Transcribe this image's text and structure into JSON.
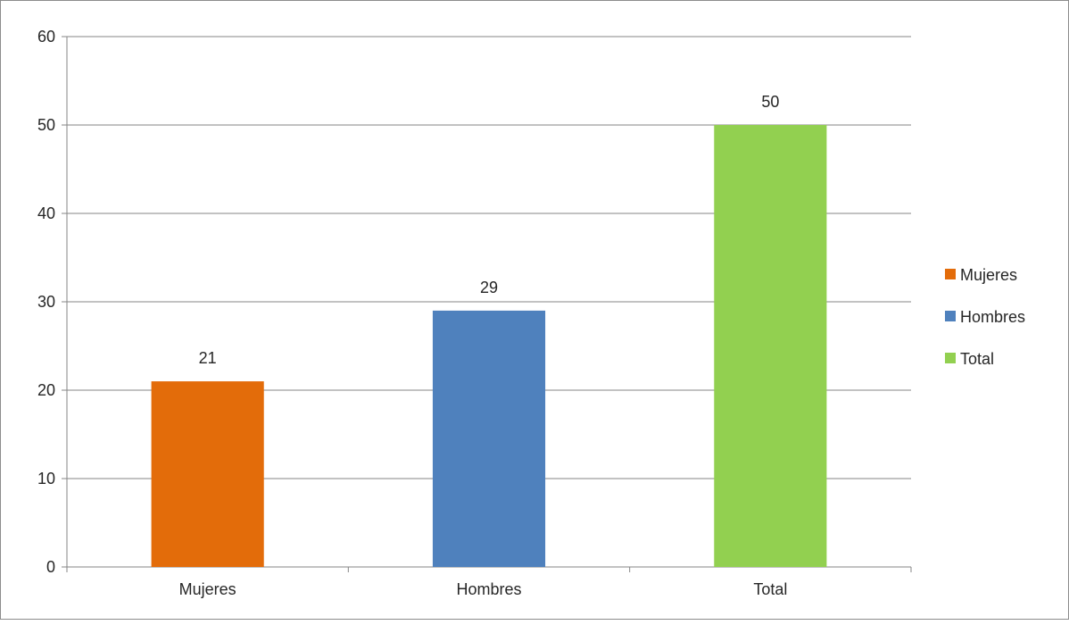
{
  "chart_data": {
    "type": "bar",
    "categories": [
      "Mujeres",
      "Hombres",
      "Total"
    ],
    "values": [
      21,
      29,
      50
    ],
    "data_labels": [
      "21",
      "29",
      "50"
    ],
    "colors": [
      "#E36C0A",
      "#4F81BD",
      "#92D050"
    ],
    "legend": {
      "position": "right",
      "entries": [
        "Mujeres",
        "Hombres",
        "Total"
      ]
    },
    "ylim": [
      0,
      60
    ],
    "yticks": [
      0,
      10,
      20,
      30,
      40,
      50,
      60
    ],
    "ytick_labels": [
      "0",
      "10",
      "20",
      "30",
      "40",
      "50",
      "60"
    ],
    "grid": true,
    "title": "",
    "xlabel": "",
    "ylabel": ""
  }
}
